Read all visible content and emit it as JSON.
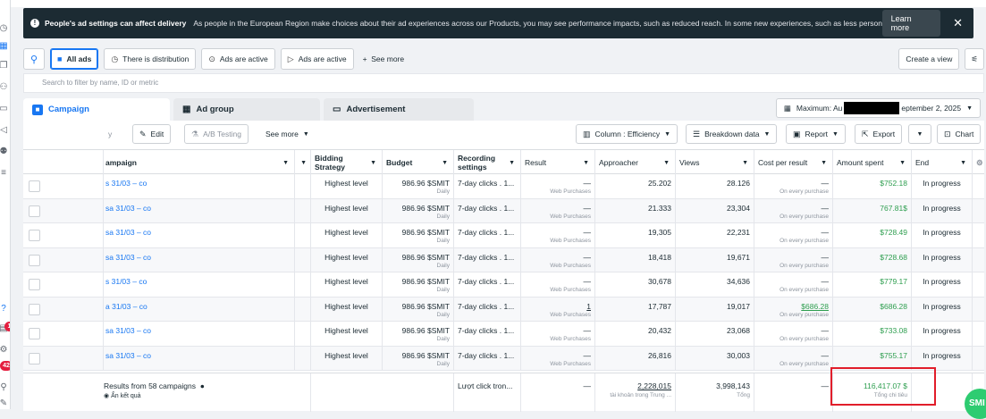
{
  "banner": {
    "title": "People's ad settings can affect delivery",
    "text": "As people in the European Region make choices about their ad experiences across our Products, you may see performance impacts, such as reduced reach. In some new experiences, such as less personalized a...",
    "learn_more": "Learn more"
  },
  "filters": {
    "all_ads": "All ads",
    "distribution": "There is distribution",
    "ads_active_1": "Ads are active",
    "ads_active_2": "Ads are active",
    "see_more": "See more",
    "create_view": "Create a view",
    "search_placeholder": "Search to filter by name, ID or metric"
  },
  "tabs": {
    "campaign": "Campaign",
    "ad_group": "Ad group",
    "advertisement": "Advertisement"
  },
  "date_range": {
    "prefix": "Maximum: Au",
    "suffix": "eptember 2, 2025"
  },
  "toolbar": {
    "partial_left": "y",
    "edit": "Edit",
    "ab_testing": "A/B Testing",
    "see_more": "See more",
    "column": "Column : Efficiency",
    "breakdown": "Breakdown data",
    "report": "Report",
    "export": "Export",
    "chart": "Chart"
  },
  "columns": {
    "campaign": "ampaign",
    "bidding": "Bidding Strategy",
    "budget": "Budget",
    "recording": "Recording settings",
    "result": "Result",
    "approacher": "Approacher",
    "views": "Views",
    "cpr": "Cost per result",
    "spent": "Amount spent",
    "end": "End"
  },
  "rows": [
    {
      "name": "s 31/03 – co",
      "bidding": "Highest level",
      "budget": "986.96 $SMIT",
      "budget_sub": "Daily",
      "recording": "7-day clicks . 1...",
      "result": "—",
      "result_sub": "Web Purchases",
      "approacher": "25.202",
      "views": "28.126",
      "cpr": "—",
      "cpr_sub": "On every purchase",
      "spent": "$752.18",
      "end": "In progress"
    },
    {
      "name": "sa 31/03 – co",
      "bidding": "Highest level",
      "budget": "986.96 $SMIT",
      "budget_sub": "Daily",
      "recording": "7-day clicks . 1...",
      "result": "—",
      "result_sub": "Web Purchases",
      "approacher": "21.333",
      "views": "23,304",
      "cpr": "—",
      "cpr_sub": "On every purchase",
      "spent": "767.81$",
      "end": "In progress"
    },
    {
      "name": "sa 31/03 – co",
      "bidding": "Highest level",
      "budget": "986.96 $SMIT",
      "budget_sub": "Daily",
      "recording": "7-day clicks . 1...",
      "result": "—",
      "result_sub": "Web Purchases",
      "approacher": "19,305",
      "views": "22,231",
      "cpr": "—",
      "cpr_sub": "On every purchase",
      "spent": "$728.49",
      "end": "In progress"
    },
    {
      "name": "sa 31/03 – co",
      "bidding": "Highest level",
      "budget": "986.96 $SMIT",
      "budget_sub": "Daily",
      "recording": "7-day clicks . 1...",
      "result": "—",
      "result_sub": "Web Purchases",
      "approacher": "18,418",
      "views": "19,671",
      "cpr": "—",
      "cpr_sub": "On every purchase",
      "spent": "$728.68",
      "end": "In progress"
    },
    {
      "name": "s 31/03 – co",
      "bidding": "Highest level",
      "budget": "986.96 $SMIT",
      "budget_sub": "Daily",
      "recording": "7-day clicks . 1...",
      "result": "—",
      "result_sub": "Web Purchases",
      "approacher": "30,678",
      "views": "34,636",
      "cpr": "—",
      "cpr_sub": "On every purchase",
      "spent": "$779.17",
      "end": "In progress"
    },
    {
      "name": "a 31/03 – co",
      "bidding": "Highest level",
      "budget": "986.96 $SMIT",
      "budget_sub": "Daily",
      "recording": "7-day clicks . 1...",
      "result": "1",
      "result_sub": "Web Purchases",
      "approacher": "17,787",
      "views": "19,017",
      "cpr": "$686.28",
      "cpr_sub": "On every purchase",
      "spent": "$686.28",
      "end": "In progress"
    },
    {
      "name": "sa 31/03 – co",
      "bidding": "Highest level",
      "budget": "986.96 $SMIT",
      "budget_sub": "Daily",
      "recording": "7-day clicks . 1...",
      "result": "—",
      "result_sub": "Web Purchases",
      "approacher": "20,432",
      "views": "23,068",
      "cpr": "—",
      "cpr_sub": "On every purchase",
      "spent": "$733.08",
      "end": "In progress"
    },
    {
      "name": "sa 31/03 – co",
      "bidding": "Highest level",
      "budget": "986.96 $SMIT",
      "budget_sub": "Daily",
      "recording": "7-day clicks . 1...",
      "result": "—",
      "result_sub": "Web Purchases",
      "approacher": "26,816",
      "views": "30,003",
      "cpr": "—",
      "cpr_sub": "On every purchase",
      "spent": "$755.17",
      "end": "In progress"
    }
  ],
  "footer": {
    "label": "Results from 58 campaigns",
    "hide": "Ẩn kết quả",
    "recording": "Lượt click tron...",
    "result": "—",
    "approacher": "2,228,015",
    "approacher_sub": "tài khoản trong Trung ...",
    "views": "3,998,143",
    "views_sub": "Tổng",
    "cpr": "—",
    "spent": "116,417.07 $",
    "spent_sub": "Tổng chi tiêu"
  },
  "rail_badges": {
    "notifications": "1",
    "messages": "42"
  },
  "help_widget": "SMI",
  "colors": {
    "accent": "#1877f2",
    "spent_green": "#2e9e4f",
    "highlight_red": "#e11d2a",
    "banner_bg": "#1c2b33"
  }
}
